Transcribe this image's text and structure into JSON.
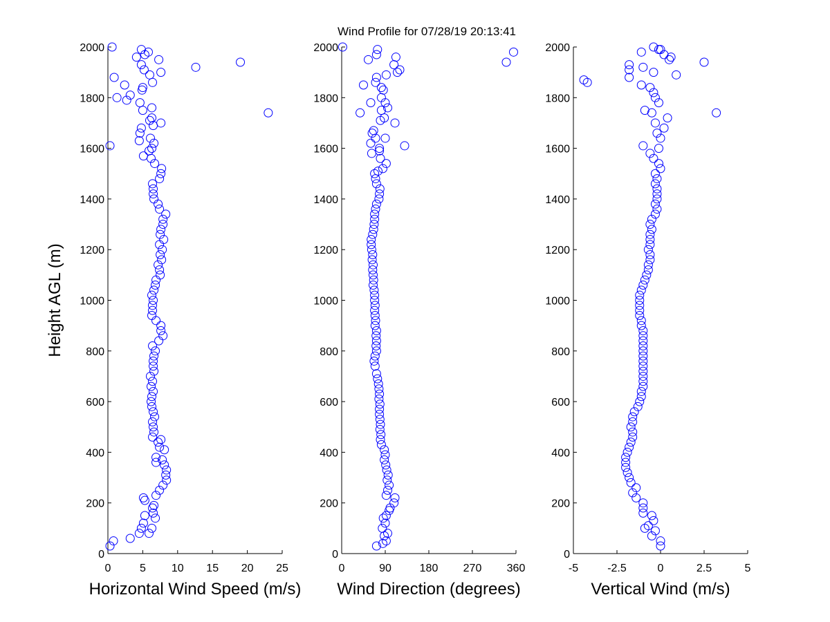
{
  "title": "Wind Profile for  07/28/19 20:13:41",
  "colors": {
    "marker": "#0000ff",
    "axis": "#000000",
    "background": "#ffffff"
  },
  "chart_data": [
    {
      "type": "scatter",
      "xlabel": "Horizontal Wind Speed (m/s)",
      "ylabel": "Height AGL (m)",
      "xlim": [
        0,
        25
      ],
      "ylim": [
        0,
        2000
      ],
      "xticks": [
        "0",
        "5",
        "10",
        "15",
        "20",
        "25"
      ],
      "yticks": [
        "0",
        "200",
        "400",
        "600",
        "800",
        "1000",
        "1200",
        "1400",
        "1600",
        "1800",
        "2000"
      ],
      "grid": false,
      "marker": "open-circle",
      "points": [
        [
          0.3,
          30
        ],
        [
          0.8,
          50
        ],
        [
          3.2,
          60
        ],
        [
          4.5,
          80
        ],
        [
          5.9,
          80
        ],
        [
          4.8,
          100
        ],
        [
          6.3,
          100
        ],
        [
          5.1,
          120
        ],
        [
          6.8,
          140
        ],
        [
          5.3,
          150
        ],
        [
          6.5,
          160
        ],
        [
          6.4,
          180
        ],
        [
          6.6,
          190
        ],
        [
          5.3,
          210
        ],
        [
          5.1,
          220
        ],
        [
          6.9,
          230
        ],
        [
          7.4,
          250
        ],
        [
          7.9,
          270
        ],
        [
          8.4,
          290
        ],
        [
          8.3,
          310
        ],
        [
          8.4,
          330
        ],
        [
          8.1,
          350
        ],
        [
          6.9,
          360
        ],
        [
          7.8,
          370
        ],
        [
          6.9,
          380
        ],
        [
          8.1,
          410
        ],
        [
          7.4,
          420
        ],
        [
          7.2,
          440
        ],
        [
          7.6,
          450
        ],
        [
          6.4,
          460
        ],
        [
          6.6,
          480
        ],
        [
          6.5,
          500
        ],
        [
          6.4,
          520
        ],
        [
          6.7,
          540
        ],
        [
          6.5,
          560
        ],
        [
          6.3,
          580
        ],
        [
          6.2,
          600
        ],
        [
          6.3,
          620
        ],
        [
          6.5,
          640
        ],
        [
          6.2,
          660
        ],
        [
          6.4,
          680
        ],
        [
          6.1,
          700
        ],
        [
          6.6,
          720
        ],
        [
          6.5,
          740
        ],
        [
          6.5,
          760
        ],
        [
          6.6,
          780
        ],
        [
          6.8,
          800
        ],
        [
          6.4,
          820
        ],
        [
          7.3,
          840
        ],
        [
          7.9,
          860
        ],
        [
          7.6,
          880
        ],
        [
          7.6,
          900
        ],
        [
          6.9,
          920
        ],
        [
          6.3,
          940
        ],
        [
          6.4,
          960
        ],
        [
          6.4,
          980
        ],
        [
          6.5,
          1000
        ],
        [
          6.3,
          1020
        ],
        [
          6.6,
          1040
        ],
        [
          6.8,
          1060
        ],
        [
          6.9,
          1080
        ],
        [
          7.5,
          1100
        ],
        [
          7.4,
          1120
        ],
        [
          7.2,
          1140
        ],
        [
          7.7,
          1160
        ],
        [
          7.5,
          1180
        ],
        [
          7.8,
          1200
        ],
        [
          7.4,
          1220
        ],
        [
          8.0,
          1240
        ],
        [
          7.5,
          1260
        ],
        [
          7.6,
          1280
        ],
        [
          7.9,
          1300
        ],
        [
          7.9,
          1320
        ],
        [
          8.3,
          1340
        ],
        [
          7.4,
          1360
        ],
        [
          7.2,
          1380
        ],
        [
          6.6,
          1400
        ],
        [
          6.5,
          1420
        ],
        [
          6.5,
          1440
        ],
        [
          6.4,
          1460
        ],
        [
          7.4,
          1480
        ],
        [
          7.6,
          1500
        ],
        [
          7.7,
          1520
        ],
        [
          6.7,
          1540
        ],
        [
          6.2,
          1560
        ],
        [
          5.1,
          1570
        ],
        [
          5.9,
          1590
        ],
        [
          6.3,
          1600
        ],
        [
          0.3,
          1610
        ],
        [
          6.6,
          1620
        ],
        [
          4.5,
          1630
        ],
        [
          6.1,
          1640
        ],
        [
          4.6,
          1660
        ],
        [
          4.8,
          1680
        ],
        [
          7.6,
          1700
        ],
        [
          6.3,
          1720
        ],
        [
          1.3,
          1800
        ],
        [
          2.7,
          1790
        ],
        [
          2.4,
          1850
        ],
        [
          3.2,
          1810
        ],
        [
          4.9,
          1830
        ],
        [
          4.6,
          1780
        ],
        [
          5.0,
          1750
        ],
        [
          6.3,
          1760
        ],
        [
          6.0,
          1710
        ],
        [
          6.5,
          1690
        ],
        [
          5.0,
          1840
        ],
        [
          6.4,
          1860
        ],
        [
          0.9,
          1880
        ],
        [
          6.0,
          1890
        ],
        [
          7.6,
          1900
        ],
        [
          5.2,
          1910
        ],
        [
          12.6,
          1920
        ],
        [
          4.8,
          1930
        ],
        [
          4.1,
          1960
        ],
        [
          7.3,
          1950
        ],
        [
          5.3,
          1970
        ],
        [
          5.8,
          1980
        ],
        [
          4.8,
          1990
        ],
        [
          0.6,
          2000
        ],
        [
          19.0,
          1940
        ],
        [
          23.0,
          1740
        ]
      ]
    },
    {
      "type": "scatter",
      "xlabel": "Wind Direction (degrees)",
      "ylabel": "",
      "xlim": [
        0,
        360
      ],
      "ylim": [
        0,
        2000
      ],
      "xticks": [
        "0",
        "90",
        "180",
        "270",
        "360"
      ],
      "yticks": [
        "0",
        "200",
        "400",
        "600",
        "800",
        "1000",
        "1200",
        "1400",
        "1600",
        "1800",
        "2000"
      ],
      "grid": false,
      "marker": "open-circle",
      "points": [
        [
          72,
          30
        ],
        [
          85,
          40
        ],
        [
          92,
          50
        ],
        [
          88,
          70
        ],
        [
          95,
          80
        ],
        [
          84,
          100
        ],
        [
          90,
          120
        ],
        [
          86,
          140
        ],
        [
          92,
          150
        ],
        [
          98,
          170
        ],
        [
          100,
          180
        ],
        [
          108,
          200
        ],
        [
          110,
          220
        ],
        [
          92,
          230
        ],
        [
          95,
          250
        ],
        [
          98,
          270
        ],
        [
          94,
          290
        ],
        [
          96,
          310
        ],
        [
          93,
          330
        ],
        [
          91,
          350
        ],
        [
          88,
          370
        ],
        [
          90,
          390
        ],
        [
          88,
          410
        ],
        [
          82,
          430
        ],
        [
          80,
          450
        ],
        [
          81,
          470
        ],
        [
          79,
          490
        ],
        [
          80,
          510
        ],
        [
          79,
          530
        ],
        [
          78,
          550
        ],
        [
          78,
          570
        ],
        [
          79,
          590
        ],
        [
          77,
          610
        ],
        [
          78,
          630
        ],
        [
          77,
          650
        ],
        [
          76,
          670
        ],
        [
          74,
          690
        ],
        [
          72,
          710
        ],
        [
          69,
          740
        ],
        [
          67,
          760
        ],
        [
          69,
          780
        ],
        [
          72,
          800
        ],
        [
          71,
          820
        ],
        [
          72,
          840
        ],
        [
          71,
          860
        ],
        [
          72,
          880
        ],
        [
          69,
          900
        ],
        [
          70,
          920
        ],
        [
          69,
          940
        ],
        [
          68,
          960
        ],
        [
          69,
          980
        ],
        [
          68,
          1000
        ],
        [
          68,
          1020
        ],
        [
          67,
          1040
        ],
        [
          65,
          1060
        ],
        [
          66,
          1080
        ],
        [
          65,
          1100
        ],
        [
          64,
          1120
        ],
        [
          65,
          1140
        ],
        [
          63,
          1160
        ],
        [
          64,
          1180
        ],
        [
          62,
          1200
        ],
        [
          61,
          1220
        ],
        [
          61,
          1240
        ],
        [
          64,
          1260
        ],
        [
          66,
          1280
        ],
        [
          67,
          1300
        ],
        [
          68,
          1320
        ],
        [
          68,
          1340
        ],
        [
          70,
          1360
        ],
        [
          72,
          1380
        ],
        [
          77,
          1400
        ],
        [
          78,
          1420
        ],
        [
          79,
          1440
        ],
        [
          72,
          1460
        ],
        [
          70,
          1480
        ],
        [
          68,
          1500
        ],
        [
          75,
          1510
        ],
        [
          85,
          1520
        ],
        [
          92,
          1540
        ],
        [
          80,
          1560
        ],
        [
          62,
          1580
        ],
        [
          78,
          1590
        ],
        [
          78,
          1600
        ],
        [
          130,
          1610
        ],
        [
          60,
          1620
        ],
        [
          70,
          1640
        ],
        [
          90,
          1640
        ],
        [
          63,
          1660
        ],
        [
          66,
          1670
        ],
        [
          110,
          1700
        ],
        [
          80,
          1710
        ],
        [
          38,
          1740
        ],
        [
          88,
          1720
        ],
        [
          82,
          1750
        ],
        [
          95,
          1760
        ],
        [
          90,
          1780
        ],
        [
          60,
          1780
        ],
        [
          82,
          1800
        ],
        [
          86,
          1830
        ],
        [
          82,
          1840
        ],
        [
          70,
          1860
        ],
        [
          45,
          1850
        ],
        [
          72,
          1880
        ],
        [
          92,
          1890
        ],
        [
          115,
          1900
        ],
        [
          120,
          1910
        ],
        [
          108,
          1930
        ],
        [
          112,
          1960
        ],
        [
          55,
          1950
        ],
        [
          72,
          1970
        ],
        [
          74,
          1990
        ],
        [
          2,
          2000
        ],
        [
          340,
          1940
        ],
        [
          355,
          1980
        ]
      ]
    },
    {
      "type": "scatter",
      "xlabel": "Vertical Wind (m/s)",
      "ylabel": "",
      "xlim": [
        -5,
        5
      ],
      "ylim": [
        0,
        2000
      ],
      "xticks": [
        "-5",
        "-2.5",
        "0",
        "2.5",
        "5"
      ],
      "yticks": [
        "0",
        "200",
        "400",
        "600",
        "800",
        "1000",
        "1200",
        "1400",
        "1600",
        "1800",
        "2000"
      ],
      "grid": false,
      "marker": "open-circle",
      "points": [
        [
          0.0,
          30
        ],
        [
          0.0,
          50
        ],
        [
          -0.5,
          70
        ],
        [
          -0.3,
          90
        ],
        [
          -0.9,
          100
        ],
        [
          -0.7,
          110
        ],
        [
          -0.4,
          130
        ],
        [
          -0.5,
          150
        ],
        [
          -1.0,
          160
        ],
        [
          -1.0,
          180
        ],
        [
          -1.0,
          200
        ],
        [
          -1.4,
          220
        ],
        [
          -1.6,
          240
        ],
        [
          -1.4,
          260
        ],
        [
          -1.7,
          280
        ],
        [
          -1.8,
          300
        ],
        [
          -1.9,
          320
        ],
        [
          -2.0,
          340
        ],
        [
          -2.0,
          360
        ],
        [
          -2.0,
          380
        ],
        [
          -1.9,
          400
        ],
        [
          -1.8,
          420
        ],
        [
          -1.7,
          440
        ],
        [
          -1.6,
          460
        ],
        [
          -1.6,
          480
        ],
        [
          -1.7,
          500
        ],
        [
          -1.6,
          520
        ],
        [
          -1.6,
          540
        ],
        [
          -1.5,
          560
        ],
        [
          -1.3,
          580
        ],
        [
          -1.2,
          600
        ],
        [
          -1.1,
          620
        ],
        [
          -1.1,
          640
        ],
        [
          -1.0,
          660
        ],
        [
          -1.0,
          680
        ],
        [
          -1.0,
          700
        ],
        [
          -1.0,
          720
        ],
        [
          -1.0,
          740
        ],
        [
          -1.0,
          760
        ],
        [
          -1.0,
          780
        ],
        [
          -1.0,
          800
        ],
        [
          -1.0,
          820
        ],
        [
          -1.0,
          840
        ],
        [
          -1.0,
          860
        ],
        [
          -1.0,
          880
        ],
        [
          -1.1,
          900
        ],
        [
          -1.1,
          920
        ],
        [
          -1.2,
          940
        ],
        [
          -1.2,
          960
        ],
        [
          -1.2,
          980
        ],
        [
          -1.2,
          1000
        ],
        [
          -1.2,
          1020
        ],
        [
          -1.1,
          1040
        ],
        [
          -1.0,
          1060
        ],
        [
          -0.9,
          1080
        ],
        [
          -0.8,
          1100
        ],
        [
          -0.7,
          1120
        ],
        [
          -0.7,
          1140
        ],
        [
          -0.6,
          1160
        ],
        [
          -0.6,
          1180
        ],
        [
          -0.7,
          1200
        ],
        [
          -0.6,
          1220
        ],
        [
          -0.6,
          1240
        ],
        [
          -0.6,
          1260
        ],
        [
          -0.5,
          1280
        ],
        [
          -0.6,
          1300
        ],
        [
          -0.5,
          1320
        ],
        [
          -0.3,
          1340
        ],
        [
          -0.2,
          1360
        ],
        [
          -0.3,
          1380
        ],
        [
          -0.2,
          1400
        ],
        [
          -0.2,
          1420
        ],
        [
          -0.2,
          1440
        ],
        [
          -0.3,
          1460
        ],
        [
          -0.2,
          1480
        ],
        [
          -0.3,
          1500
        ],
        [
          0.0,
          1520
        ],
        [
          -0.1,
          1540
        ],
        [
          -0.4,
          1560
        ],
        [
          -0.6,
          1580
        ],
        [
          -0.1,
          1600
        ],
        [
          -1.0,
          1610
        ],
        [
          0.0,
          1640
        ],
        [
          -0.2,
          1660
        ],
        [
          0.2,
          1680
        ],
        [
          -0.3,
          1700
        ],
        [
          0.4,
          1720
        ],
        [
          -0.5,
          1740
        ],
        [
          -0.9,
          1750
        ],
        [
          3.2,
          1740
        ],
        [
          -0.1,
          1780
        ],
        [
          -0.3,
          1800
        ],
        [
          -0.4,
          1820
        ],
        [
          -0.6,
          1840
        ],
        [
          -1.1,
          1850
        ],
        [
          -4.4,
          1870
        ],
        [
          -4.2,
          1860
        ],
        [
          -1.8,
          1880
        ],
        [
          -1.8,
          1910
        ],
        [
          -1.8,
          1930
        ],
        [
          0.9,
          1890
        ],
        [
          -0.4,
          1900
        ],
        [
          -1.0,
          1920
        ],
        [
          2.5,
          1940
        ],
        [
          -1.1,
          1980
        ],
        [
          0.5,
          1950
        ],
        [
          0.6,
          1960
        ],
        [
          0.2,
          1970
        ],
        [
          -0.1,
          1990
        ],
        [
          -0.4,
          2000
        ],
        [
          0.0,
          1990
        ]
      ]
    }
  ]
}
